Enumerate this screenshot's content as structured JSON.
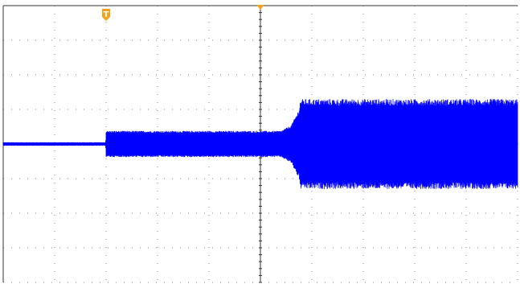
{
  "chart_data": {
    "type": "line",
    "title": "",
    "xlabel": "",
    "ylabel": "",
    "grid": true,
    "x_divisions": 10,
    "y_divisions": 8,
    "xlim": [
      -5,
      5
    ],
    "ylim": [
      -4,
      4
    ],
    "trigger_marker": {
      "label": "T",
      "x": -3.0,
      "color": "#f5a21a"
    },
    "time_reference_marker": {
      "x": 0.0,
      "color": "#f5a21a"
    },
    "series": [
      {
        "color": "#0000ff",
        "envelope": [
          {
            "x": -5.0,
            "upper": 0.05,
            "lower": -0.05
          },
          {
            "x": -3.01,
            "upper": 0.05,
            "lower": -0.05
          },
          {
            "x": -3.0,
            "upper": 0.38,
            "lower": -0.38
          },
          {
            "x": 0.4,
            "upper": 0.38,
            "lower": -0.38
          },
          {
            "x": 0.6,
            "upper": 0.55,
            "lower": -0.55
          },
          {
            "x": 0.75,
            "upper": 1.0,
            "lower": -1.0
          },
          {
            "x": 0.78,
            "upper": 1.3,
            "lower": -1.3
          },
          {
            "x": 5.0,
            "upper": 1.3,
            "lower": -1.3
          }
        ]
      }
    ]
  }
}
